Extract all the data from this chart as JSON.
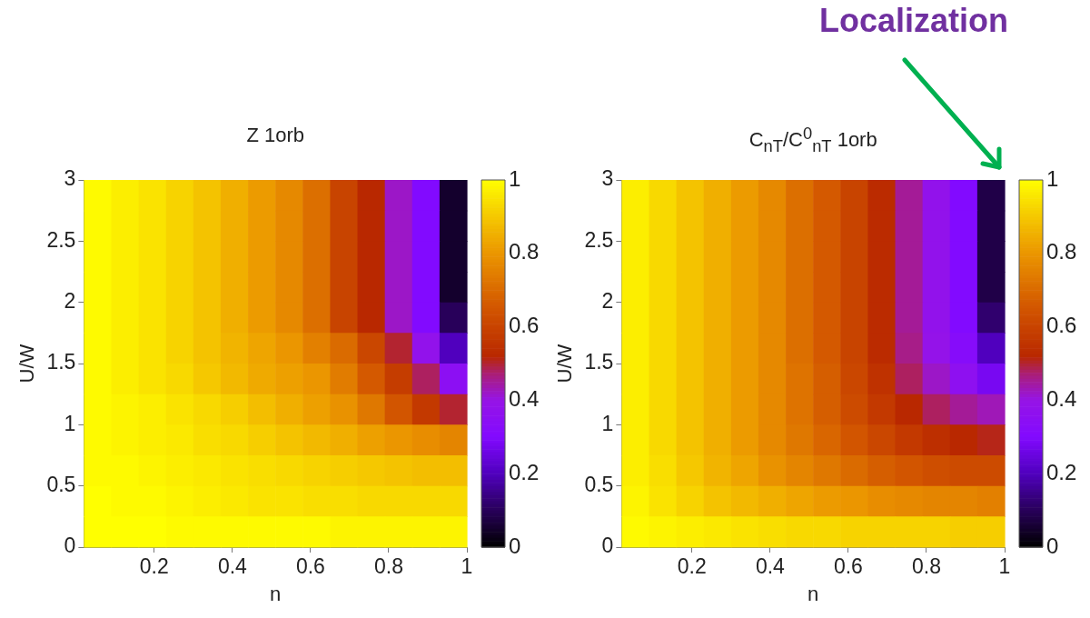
{
  "chart_data": [
    {
      "type": "heatmap",
      "title": "Z 1orb",
      "xlabel": "n",
      "ylabel": "U/W",
      "x": [
        0.055,
        0.125,
        0.195,
        0.265,
        0.335,
        0.405,
        0.475,
        0.545,
        0.615,
        0.685,
        0.755,
        0.825,
        0.895,
        0.965
      ],
      "y": [
        2.875,
        2.625,
        2.375,
        2.125,
        1.875,
        1.625,
        1.375,
        1.125,
        0.875,
        0.625,
        0.375,
        0.125
      ],
      "cells": [
        [
          0.99,
          0.97,
          0.95,
          0.92,
          0.89,
          0.85,
          0.81,
          0.77,
          0.71,
          0.6,
          0.52,
          0.42,
          0.3,
          0.05
        ],
        [
          0.99,
          0.97,
          0.95,
          0.92,
          0.89,
          0.85,
          0.81,
          0.77,
          0.71,
          0.6,
          0.52,
          0.42,
          0.3,
          0.05
        ],
        [
          0.99,
          0.97,
          0.95,
          0.92,
          0.89,
          0.85,
          0.81,
          0.77,
          0.71,
          0.6,
          0.52,
          0.42,
          0.3,
          0.05
        ],
        [
          0.99,
          0.97,
          0.95,
          0.92,
          0.89,
          0.85,
          0.81,
          0.77,
          0.71,
          0.6,
          0.52,
          0.42,
          0.3,
          0.05
        ],
        [
          0.99,
          0.97,
          0.95,
          0.92,
          0.89,
          0.85,
          0.81,
          0.77,
          0.71,
          0.6,
          0.52,
          0.42,
          0.3,
          0.1
        ],
        [
          0.99,
          0.97,
          0.95,
          0.92,
          0.89,
          0.86,
          0.83,
          0.8,
          0.75,
          0.7,
          0.61,
          0.5,
          0.38,
          0.2
        ],
        [
          0.99,
          0.97,
          0.95,
          0.93,
          0.9,
          0.87,
          0.84,
          0.82,
          0.8,
          0.74,
          0.66,
          0.58,
          0.48,
          0.35
        ],
        [
          0.99,
          0.98,
          0.97,
          0.95,
          0.93,
          0.91,
          0.88,
          0.85,
          0.82,
          0.79,
          0.73,
          0.65,
          0.57,
          0.5
        ],
        [
          0.99,
          0.98,
          0.97,
          0.96,
          0.94,
          0.93,
          0.91,
          0.89,
          0.87,
          0.85,
          0.82,
          0.8,
          0.78,
          0.76
        ],
        [
          0.99,
          0.99,
          0.98,
          0.97,
          0.96,
          0.95,
          0.94,
          0.93,
          0.92,
          0.91,
          0.9,
          0.89,
          0.88,
          0.88
        ],
        [
          1,
          0.99,
          0.99,
          0.98,
          0.97,
          0.96,
          0.95,
          0.95,
          0.94,
          0.94,
          0.93,
          0.93,
          0.93,
          0.93
        ],
        [
          1,
          1,
          1,
          0.99,
          0.99,
          0.99,
          0.99,
          0.99,
          0.99,
          0.98,
          0.98,
          0.98,
          0.98,
          0.98
        ]
      ],
      "xlim": [
        0.02,
        1
      ],
      "xticks": [
        0.2,
        0.4,
        0.6,
        0.8,
        1
      ],
      "ylim": [
        0,
        3
      ],
      "yticks": [
        0,
        0.5,
        1,
        1.5,
        2,
        2.5,
        3
      ],
      "clim": [
        0,
        1
      ],
      "cticks": [
        0,
        0.2,
        0.4,
        0.6,
        0.8,
        1
      ]
    },
    {
      "type": "heatmap",
      "title": "C$_{nT}$/C$^{0}$$_{nT}$ 1orb",
      "xlabel": "n",
      "ylabel": "U/W",
      "x": [
        0.055,
        0.125,
        0.195,
        0.265,
        0.335,
        0.405,
        0.475,
        0.545,
        0.615,
        0.685,
        0.755,
        0.825,
        0.895,
        0.965
      ],
      "y": [
        2.875,
        2.625,
        2.375,
        2.125,
        1.875,
        1.625,
        1.375,
        1.125,
        0.875,
        0.625,
        0.375,
        0.125
      ],
      "cells": [
        [
          0.97,
          0.93,
          0.89,
          0.85,
          0.81,
          0.77,
          0.71,
          0.66,
          0.6,
          0.53,
          0.45,
          0.38,
          0.3,
          0.08
        ],
        [
          0.97,
          0.93,
          0.89,
          0.85,
          0.81,
          0.77,
          0.71,
          0.66,
          0.6,
          0.53,
          0.45,
          0.38,
          0.3,
          0.08
        ],
        [
          0.97,
          0.93,
          0.89,
          0.85,
          0.81,
          0.77,
          0.71,
          0.66,
          0.6,
          0.53,
          0.45,
          0.38,
          0.3,
          0.08
        ],
        [
          0.97,
          0.93,
          0.89,
          0.85,
          0.81,
          0.77,
          0.71,
          0.66,
          0.6,
          0.53,
          0.45,
          0.38,
          0.3,
          0.08
        ],
        [
          0.97,
          0.93,
          0.89,
          0.85,
          0.81,
          0.77,
          0.71,
          0.66,
          0.6,
          0.53,
          0.45,
          0.38,
          0.3,
          0.12
        ],
        [
          0.97,
          0.93,
          0.89,
          0.85,
          0.81,
          0.77,
          0.71,
          0.66,
          0.6,
          0.53,
          0.46,
          0.39,
          0.32,
          0.2
        ],
        [
          0.97,
          0.93,
          0.89,
          0.85,
          0.81,
          0.77,
          0.72,
          0.67,
          0.61,
          0.55,
          0.48,
          0.42,
          0.36,
          0.28
        ],
        [
          0.97,
          0.93,
          0.89,
          0.85,
          0.81,
          0.77,
          0.72,
          0.67,
          0.62,
          0.57,
          0.52,
          0.48,
          0.45,
          0.43
        ],
        [
          0.97,
          0.93,
          0.89,
          0.85,
          0.81,
          0.77,
          0.73,
          0.69,
          0.65,
          0.61,
          0.57,
          0.54,
          0.52,
          0.51
        ],
        [
          0.97,
          0.94,
          0.9,
          0.86,
          0.83,
          0.79,
          0.76,
          0.73,
          0.7,
          0.67,
          0.65,
          0.63,
          0.62,
          0.62
        ],
        [
          0.98,
          0.95,
          0.92,
          0.89,
          0.87,
          0.85,
          0.83,
          0.81,
          0.8,
          0.78,
          0.77,
          0.76,
          0.76,
          0.75
        ],
        [
          0.99,
          0.98,
          0.97,
          0.96,
          0.95,
          0.94,
          0.93,
          0.93,
          0.92,
          0.92,
          0.92,
          0.92,
          0.91,
          0.91
        ]
      ],
      "xlim": [
        0.02,
        1
      ],
      "xticks": [
        0.2,
        0.4,
        0.6,
        0.8,
        1
      ],
      "ylim": [
        0,
        3
      ],
      "yticks": [
        0,
        0.5,
        1,
        1.5,
        2,
        2.5,
        3
      ],
      "clim": [
        0,
        1
      ],
      "cticks": [
        0,
        0.2,
        0.4,
        0.6,
        0.8,
        1
      ],
      "annotations": [
        "Localization"
      ]
    }
  ]
}
